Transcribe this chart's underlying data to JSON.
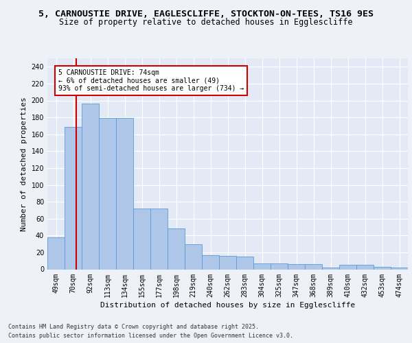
{
  "title1": "5, CARNOUSTIE DRIVE, EAGLESCLIFFE, STOCKTON-ON-TEES, TS16 9ES",
  "title2": "Size of property relative to detached houses in Egglescliffe",
  "xlabel": "Distribution of detached houses by size in Egglescliffe",
  "ylabel": "Number of detached properties",
  "categories": [
    "49sqm",
    "70sqm",
    "92sqm",
    "113sqm",
    "134sqm",
    "155sqm",
    "177sqm",
    "198sqm",
    "219sqm",
    "240sqm",
    "262sqm",
    "283sqm",
    "304sqm",
    "325sqm",
    "347sqm",
    "368sqm",
    "389sqm",
    "410sqm",
    "432sqm",
    "453sqm",
    "474sqm"
  ],
  "values": [
    38,
    169,
    196,
    179,
    179,
    72,
    72,
    48,
    30,
    17,
    16,
    15,
    7,
    7,
    6,
    6,
    2,
    5,
    5,
    3,
    2
  ],
  "bar_color": "#aec6e8",
  "bar_edge_color": "#5b9bd5",
  "annotation_box_text": "5 CARNOUSTIE DRIVE: 74sqm\n← 6% of detached houses are smaller (49)\n93% of semi-detached houses are larger (734) →",
  "red_line_color": "#cc0000",
  "red_box_color": "#cc0000",
  "footer1": "Contains HM Land Registry data © Crown copyright and database right 2025.",
  "footer2": "Contains public sector information licensed under the Open Government Licence v3.0.",
  "bg_color": "#eef2f8",
  "plot_bg_color": "#e4eaf5",
  "grid_color": "#ffffff",
  "ylim": [
    0,
    250
  ],
  "yticks": [
    0,
    20,
    40,
    60,
    80,
    100,
    120,
    140,
    160,
    180,
    200,
    220,
    240
  ],
  "title_fontsize": 9.5,
  "subtitle_fontsize": 8.5,
  "label_fontsize": 8,
  "tick_fontsize": 7,
  "footer_fontsize": 6
}
